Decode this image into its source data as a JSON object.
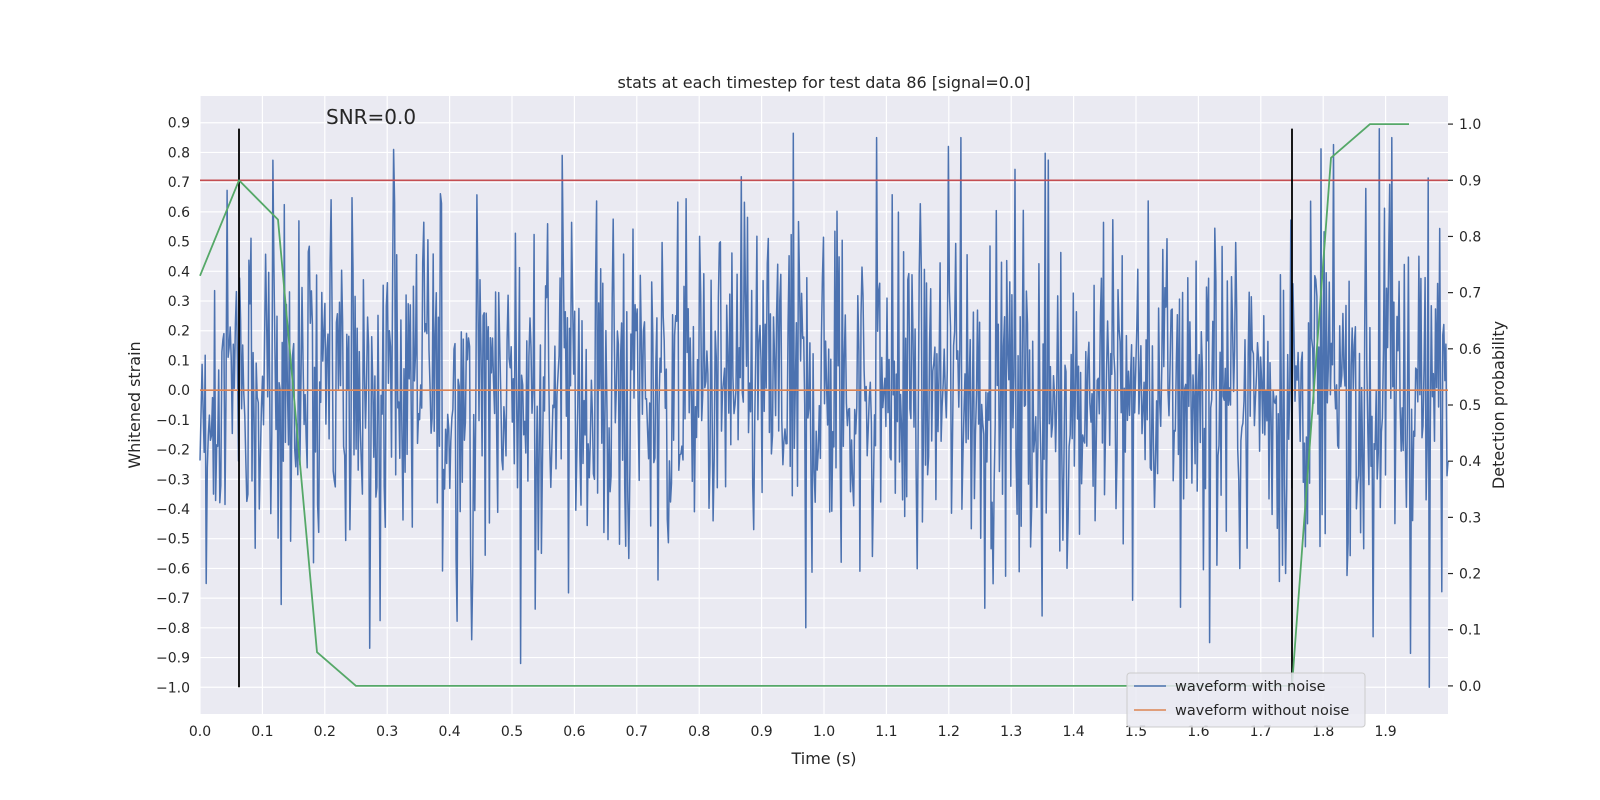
{
  "chart_data": {
    "type": "line",
    "title": "stats at each timestep for test data 86 [signal=0.0]",
    "xlabel": "Time (s)",
    "ylabel": "Whitened strain",
    "y2label": "Detection probability",
    "annotation": "SNR=0.0",
    "xlim": [
      0.0,
      2.0
    ],
    "ylim": [
      -1.09,
      0.99
    ],
    "y2lim": [
      -0.05,
      1.05
    ],
    "x_ticks": [
      "0.0",
      "0.1",
      "0.2",
      "0.3",
      "0.4",
      "0.5",
      "0.6",
      "0.7",
      "0.8",
      "0.9",
      "1.0",
      "1.1",
      "1.2",
      "1.3",
      "1.4",
      "1.5",
      "1.6",
      "1.7",
      "1.8",
      "1.9"
    ],
    "y_ticks": [
      "0.9",
      "0.8",
      "0.7",
      "0.6",
      "0.5",
      "0.4",
      "0.3",
      "0.2",
      "0.1",
      "0.0",
      "−0.1",
      "−0.2",
      "−0.3",
      "−0.4",
      "−0.5",
      "−0.6",
      "−0.7",
      "−0.8",
      "−0.9",
      "−1.0"
    ],
    "y2_ticks": [
      "1.0",
      "0.9",
      "0.8",
      "0.7",
      "0.6",
      "0.5",
      "0.4",
      "0.3",
      "0.2",
      "0.1",
      "0.0"
    ],
    "grid": true,
    "legend_position": "lower-right",
    "series": [
      {
        "name": "waveform with noise",
        "color": "#4c72b0",
        "axis": "left",
        "x_range": [
          0.0,
          2.0
        ],
        "samples": 1200,
        "envelope": {
          "typical_abs": 0.3,
          "max": 0.88,
          "min": -1.0
        },
        "peaks": [
          [
            0.31,
            0.81
          ],
          [
            0.58,
            0.79
          ],
          [
            1.085,
            0.85
          ],
          [
            1.2,
            0.82
          ],
          [
            1.22,
            0.85
          ],
          [
            1.89,
            0.88
          ],
          [
            1.91,
            0.85
          ]
        ],
        "troughs": [
          [
            0.435,
            -0.84
          ],
          [
            0.97,
            -0.8
          ],
          [
            1.35,
            -0.76
          ],
          [
            1.88,
            -0.83
          ],
          [
            1.97,
            -1.0
          ]
        ]
      },
      {
        "name": "waveform without noise",
        "color": "#dd8452",
        "axis": "left",
        "x": [
          0.0,
          2.0
        ],
        "y": [
          0.0,
          0.0
        ]
      },
      {
        "color": "#55a868",
        "axis": "right",
        "x": [
          0.0,
          0.0625,
          0.125,
          0.1875,
          0.25,
          1.75,
          1.8125,
          1.875,
          1.9375
        ],
        "y": [
          0.73,
          0.9,
          0.83,
          0.06,
          0.0,
          0.0,
          0.94,
          1.0,
          1.0
        ]
      }
    ],
    "threshold": {
      "color": "#c44e52",
      "axis": "right",
      "value": 0.9
    },
    "vertical_lines": {
      "color": "#000000",
      "x": [
        0.0625,
        1.75
      ],
      "y_range": [
        -1.0,
        0.88
      ]
    },
    "legend_entries": [
      {
        "label": "waveform with noise",
        "color": "#4c72b0"
      },
      {
        "label": "waveform without noise",
        "color": "#dd8452"
      }
    ],
    "colors": {
      "plot_bg": "#eaeaf2",
      "grid": "#ffffff"
    }
  }
}
